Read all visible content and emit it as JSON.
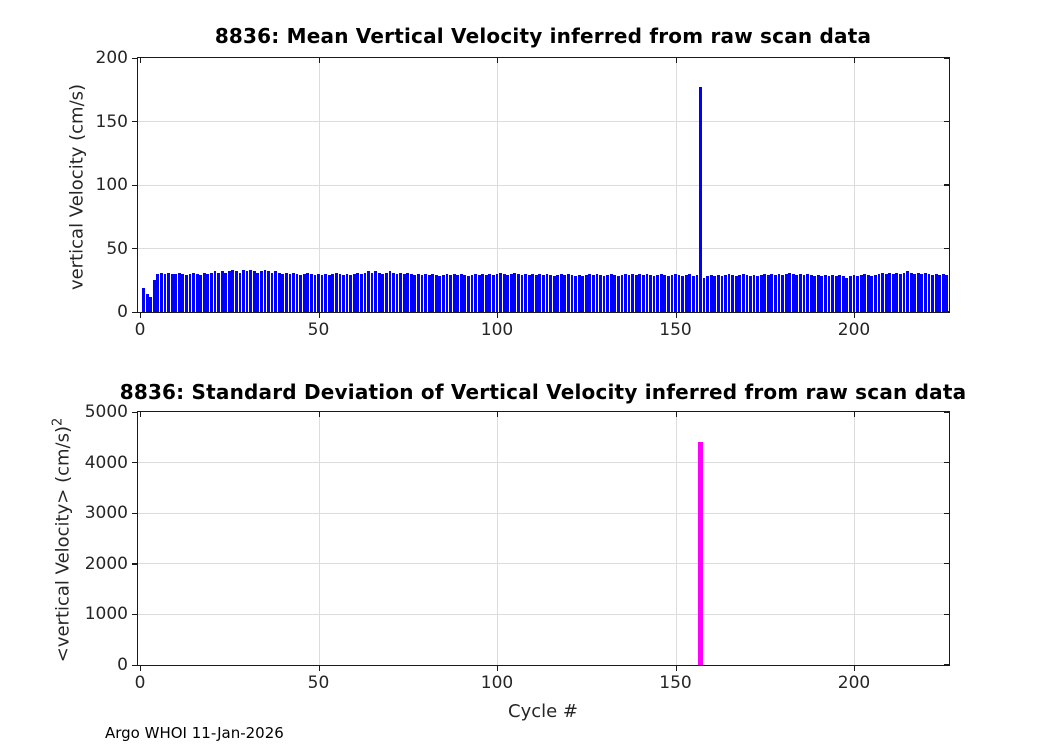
{
  "figure": {
    "xlabel": "Cycle #",
    "footer": "Argo WHOI 11-Jan-2026",
    "background_color": "#ffffff",
    "axis_color": "#1a1a1a",
    "grid_color": "#dcdcdc",
    "tick_label_color": "#262626"
  },
  "chart_data": [
    {
      "type": "bar",
      "title": "8836: Mean Vertical Velocity inferred from raw scan data",
      "ylabel": "vertical Velocity (cm/s)",
      "bar_color": "#0000ff",
      "xlim": [
        0,
        227
      ],
      "ylim": [
        0,
        200
      ],
      "xticks": [
        0,
        50,
        100,
        150,
        200
      ],
      "yticks": [
        0,
        50,
        100,
        150,
        200
      ],
      "grid": true,
      "legend": "none",
      "x_start_cycle": 1,
      "spike": {
        "cycle": 157,
        "value": 177
      },
      "values": [
        19,
        14,
        12,
        25,
        30,
        31,
        30,
        31,
        30,
        30,
        31,
        30,
        29,
        30,
        31,
        30,
        29,
        31,
        30,
        31,
        32,
        31,
        32,
        31,
        32,
        33,
        32,
        31,
        33,
        32,
        33,
        32,
        31,
        32,
        33,
        32,
        31,
        32,
        31,
        30,
        31,
        30,
        31,
        30,
        29,
        30,
        31,
        30,
        29,
        30,
        29,
        30,
        29,
        30,
        31,
        30,
        29,
        30,
        29,
        30,
        31,
        30,
        31,
        32,
        31,
        32,
        31,
        30,
        31,
        32,
        31,
        30,
        31,
        30,
        31,
        30,
        29,
        30,
        29,
        30,
        29,
        30,
        29,
        28,
        29,
        30,
        29,
        30,
        29,
        30,
        29,
        28,
        29,
        30,
        29,
        30,
        29,
        30,
        29,
        30,
        31,
        30,
        29,
        30,
        31,
        30,
        29,
        30,
        29,
        30,
        29,
        30,
        29,
        30,
        29,
        28,
        29,
        30,
        29,
        30,
        29,
        28,
        29,
        28,
        29,
        30,
        29,
        30,
        29,
        28,
        29,
        30,
        29,
        28,
        29,
        30,
        29,
        30,
        29,
        30,
        29,
        30,
        29,
        28,
        29,
        30,
        29,
        28,
        29,
        30,
        29,
        28,
        29,
        30,
        28,
        29,
        177,
        27,
        28,
        29,
        28,
        29,
        28,
        29,
        30,
        29,
        28,
        29,
        30,
        29,
        28,
        29,
        28,
        29,
        30,
        29,
        30,
        29,
        30,
        29,
        30,
        31,
        30,
        29,
        30,
        29,
        30,
        29,
        28,
        29,
        28,
        29,
        28,
        29,
        28,
        29,
        28,
        27,
        28,
        29,
        28,
        29,
        30,
        29,
        28,
        29,
        30,
        31,
        30,
        31,
        30,
        31,
        30,
        31,
        32,
        31,
        30,
        31,
        30,
        31,
        30,
        29,
        30,
        29,
        30,
        29,
        30
      ]
    },
    {
      "type": "bar",
      "title": "8836: Standard Deviation of Vertical Velocity inferred from raw scan data",
      "ylabel": "<vertical Velocity> (cm/s)",
      "ylabel_sup": "2",
      "bar_color": "#ff00ff",
      "xlim": [
        0,
        227
      ],
      "ylim": [
        0,
        5000
      ],
      "xticks": [
        0,
        50,
        100,
        150,
        200
      ],
      "yticks": [
        0,
        1000,
        2000,
        3000,
        4000,
        5000
      ],
      "grid": true,
      "legend": "none",
      "visible_bars": [
        {
          "cycle": 157,
          "value": 4400
        }
      ],
      "baseline_note": "all other cycles ~0, not visible at this axis scale"
    }
  ]
}
